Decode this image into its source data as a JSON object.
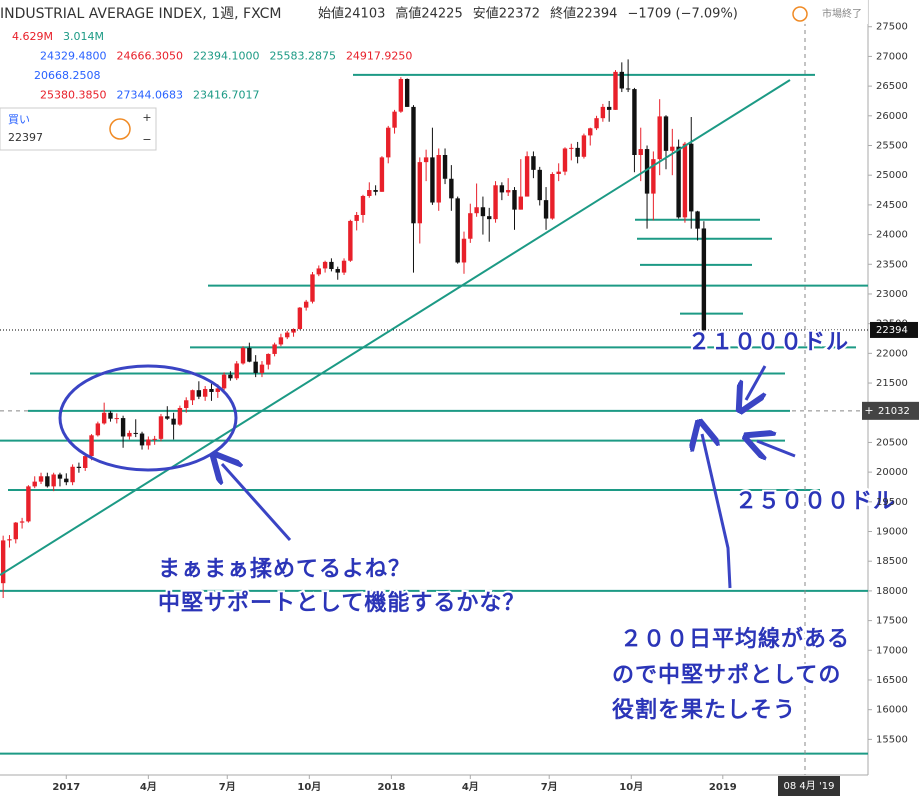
{
  "header": {
    "title": "INDUSTRIAL AVERAGE INDEX, 1週, FXCM",
    "items": [
      "始値24103",
      "高値24225",
      "安値22372",
      "終値22394",
      "−1709 (−7.09%)"
    ],
    "status": "市場終了"
  },
  "indicators": [
    [
      "4.629M",
      "3.014M"
    ],
    [
      "24329.4800",
      "24666.3050",
      "22394.1000",
      "25583.2875",
      "24917.9250"
    ],
    [
      "20668.2508"
    ],
    [
      "25380.3850",
      "27344.0683",
      "23416.7017"
    ]
  ],
  "order": {
    "side": "買い",
    "price": "22397"
  },
  "date_label": "08 4月 '19",
  "annotations": [
    "２１０００ドル",
    "２５０００ドル",
    "まぁまぁ揉めてるよね？",
    "中堅サポートとして機能するかな？",
    "２００日平均線がある",
    "ので中堅サポとしての",
    "役割を果たしそう"
  ],
  "chart_data": {
    "type": "candlestick",
    "up_color": "#e8202a",
    "down_color": "#111111",
    "ohlc": [
      [
        18130,
        18930,
        17880,
        18850
      ],
      [
        18850,
        18940,
        18730,
        18870
      ],
      [
        18870,
        19160,
        18800,
        19150
      ],
      [
        19150,
        19230,
        19050,
        19170
      ],
      [
        19170,
        19780,
        19150,
        19760
      ],
      [
        19760,
        19930,
        19730,
        19840
      ],
      [
        19840,
        19990,
        19800,
        19930
      ],
      [
        19930,
        19990,
        19740,
        19760
      ],
      [
        19760,
        19990,
        19680,
        19960
      ],
      [
        19960,
        19990,
        19760,
        19890
      ],
      [
        19890,
        19980,
        19780,
        19830
      ],
      [
        19830,
        20130,
        19780,
        20090
      ],
      [
        20090,
        20160,
        19990,
        20070
      ],
      [
        20070,
        20300,
        20020,
        20270
      ],
      [
        20270,
        20640,
        20200,
        20620
      ],
      [
        20620,
        20850,
        20600,
        20820
      ],
      [
        20820,
        21170,
        20800,
        21000
      ],
      [
        21000,
        21030,
        20850,
        20900
      ],
      [
        20900,
        20990,
        20820,
        20910
      ],
      [
        20910,
        20950,
        20410,
        20600
      ],
      [
        20600,
        20700,
        20550,
        20660
      ],
      [
        20660,
        20890,
        20590,
        20650
      ],
      [
        20650,
        20680,
        20380,
        20450
      ],
      [
        20450,
        20600,
        20380,
        20550
      ],
      [
        20550,
        20610,
        20460,
        20560
      ],
      [
        20560,
        20980,
        20520,
        20940
      ],
      [
        20940,
        21110,
        20880,
        20900
      ],
      [
        20900,
        21000,
        20550,
        20800
      ],
      [
        20800,
        21120,
        20780,
        21080
      ],
      [
        21080,
        21260,
        21000,
        21210
      ],
      [
        21210,
        21390,
        21130,
        21380
      ],
      [
        21380,
        21530,
        21230,
        21270
      ],
      [
        21270,
        21450,
        21200,
        21400
      ],
      [
        21400,
        21490,
        21200,
        21350
      ],
      [
        21350,
        21480,
        21250,
        21410
      ],
      [
        21410,
        21680,
        21380,
        21640
      ],
      [
        21640,
        21700,
        21540,
        21580
      ],
      [
        21580,
        21870,
        21550,
        21830
      ],
      [
        21830,
        22120,
        21810,
        22090
      ],
      [
        22090,
        22180,
        21850,
        21860
      ],
      [
        21860,
        21970,
        21600,
        21670
      ],
      [
        21670,
        21870,
        21600,
        21810
      ],
      [
        21810,
        22000,
        21730,
        21990
      ],
      [
        21990,
        22180,
        21950,
        22150
      ],
      [
        22150,
        22330,
        22120,
        22270
      ],
      [
        22270,
        22380,
        22240,
        22350
      ],
      [
        22350,
        22420,
        22280,
        22410
      ],
      [
        22410,
        22780,
        22400,
        22770
      ],
      [
        22770,
        22900,
        22720,
        22870
      ],
      [
        22870,
        23370,
        22840,
        23330
      ],
      [
        23330,
        23480,
        23300,
        23430
      ],
      [
        23430,
        23560,
        23360,
        23540
      ],
      [
        23540,
        23600,
        23380,
        23420
      ],
      [
        23420,
        23460,
        23240,
        23360
      ],
      [
        23360,
        23600,
        23320,
        23560
      ],
      [
        23560,
        24250,
        23540,
        24230
      ],
      [
        24230,
        24380,
        24070,
        24330
      ],
      [
        24330,
        24670,
        24200,
        24650
      ],
      [
        24650,
        24880,
        24620,
        24750
      ],
      [
        24750,
        24830,
        24660,
        24720
      ],
      [
        24720,
        25320,
        24720,
        25300
      ],
      [
        25300,
        25830,
        25200,
        25800
      ],
      [
        25800,
        26100,
        25700,
        26070
      ],
      [
        26070,
        26650,
        26050,
        26620
      ],
      [
        26620,
        26630,
        26150,
        26150
      ],
      [
        26150,
        26180,
        23360,
        24190
      ],
      [
        24190,
        25300,
        23850,
        25220
      ],
      [
        25220,
        25430,
        24900,
        25300
      ],
      [
        25300,
        25800,
        24500,
        24540
      ],
      [
        24540,
        25450,
        24400,
        25340
      ],
      [
        25340,
        25450,
        24850,
        24940
      ],
      [
        24940,
        25170,
        24400,
        24610
      ],
      [
        24610,
        24640,
        23510,
        23530
      ],
      [
        23530,
        24050,
        23340,
        23930
      ],
      [
        23930,
        24520,
        23860,
        24360
      ],
      [
        24360,
        24860,
        24300,
        24460
      ],
      [
        24460,
        24640,
        24000,
        24310
      ],
      [
        24310,
        24450,
        23880,
        24260
      ],
      [
        24260,
        24900,
        24200,
        24830
      ],
      [
        24830,
        24880,
        24580,
        24710
      ],
      [
        24710,
        24950,
        24650,
        24750
      ],
      [
        24750,
        24800,
        24080,
        24420
      ],
      [
        24420,
        25270,
        24420,
        24640
      ],
      [
        24640,
        25400,
        24640,
        25320
      ],
      [
        25320,
        25400,
        24950,
        25090
      ],
      [
        25090,
        25140,
        24490,
        24580
      ],
      [
        24580,
        24800,
        24080,
        24270
      ],
      [
        24270,
        25050,
        24250,
        25020
      ],
      [
        25020,
        25200,
        24900,
        25060
      ],
      [
        25060,
        25470,
        25000,
        25450
      ],
      [
        25450,
        25530,
        25250,
        25460
      ],
      [
        25460,
        25560,
        25200,
        25310
      ],
      [
        25310,
        25700,
        25280,
        25670
      ],
      [
        25670,
        25800,
        25500,
        25790
      ],
      [
        25790,
        26000,
        25760,
        25960
      ],
      [
        25960,
        26200,
        25900,
        26150
      ],
      [
        26150,
        26250,
        25900,
        26100
      ],
      [
        26100,
        26770,
        26100,
        26740
      ],
      [
        26740,
        26900,
        26400,
        26460
      ],
      [
        26460,
        26950,
        26400,
        26450
      ],
      [
        26450,
        26470,
        25050,
        25340
      ],
      [
        25340,
        25800,
        24900,
        25440
      ],
      [
        25440,
        25500,
        24100,
        24690
      ],
      [
        24690,
        25400,
        24240,
        25270
      ],
      [
        25270,
        26280,
        25000,
        25990
      ],
      [
        25990,
        26010,
        25100,
        25410
      ],
      [
        25410,
        25780,
        25000,
        25480
      ],
      [
        25480,
        25600,
        24270,
        24290
      ],
      [
        24290,
        25560,
        24200,
        25530
      ],
      [
        25530,
        25980,
        24100,
        24390
      ],
      [
        24390,
        24400,
        23900,
        24100
      ],
      [
        24103,
        24225,
        22372,
        22394
      ]
    ],
    "hlines": [
      26690,
      24250,
      23930,
      23490,
      23140,
      22670,
      22100,
      21660,
      20530,
      19700,
      18000,
      15260
    ],
    "crosshair_value": 21032,
    "xlim": [
      -0.5,
      137
    ],
    "xticks": [
      {
        "value": 10,
        "label": "2017"
      },
      {
        "value": 23,
        "label": "4月"
      },
      {
        "value": 35.5,
        "label": "7月"
      },
      {
        "value": 48.5,
        "label": "10月"
      },
      {
        "value": 61.5,
        "label": "2018"
      },
      {
        "value": 74,
        "label": "4月"
      },
      {
        "value": 86.5,
        "label": "7月"
      },
      {
        "value": 99.5,
        "label": "10月"
      },
      {
        "value": 114,
        "label": "2019"
      }
    ],
    "ylim": [
      14900,
      27950
    ],
    "yticks": [
      15500,
      16000,
      16500,
      17000,
      17500,
      18000,
      18500,
      19000,
      19500,
      20000,
      20500,
      21000,
      21500,
      22000,
      22500,
      23000,
      23500,
      24000,
      24500,
      25000,
      25500,
      26000,
      26500,
      27000,
      27500
    ]
  }
}
